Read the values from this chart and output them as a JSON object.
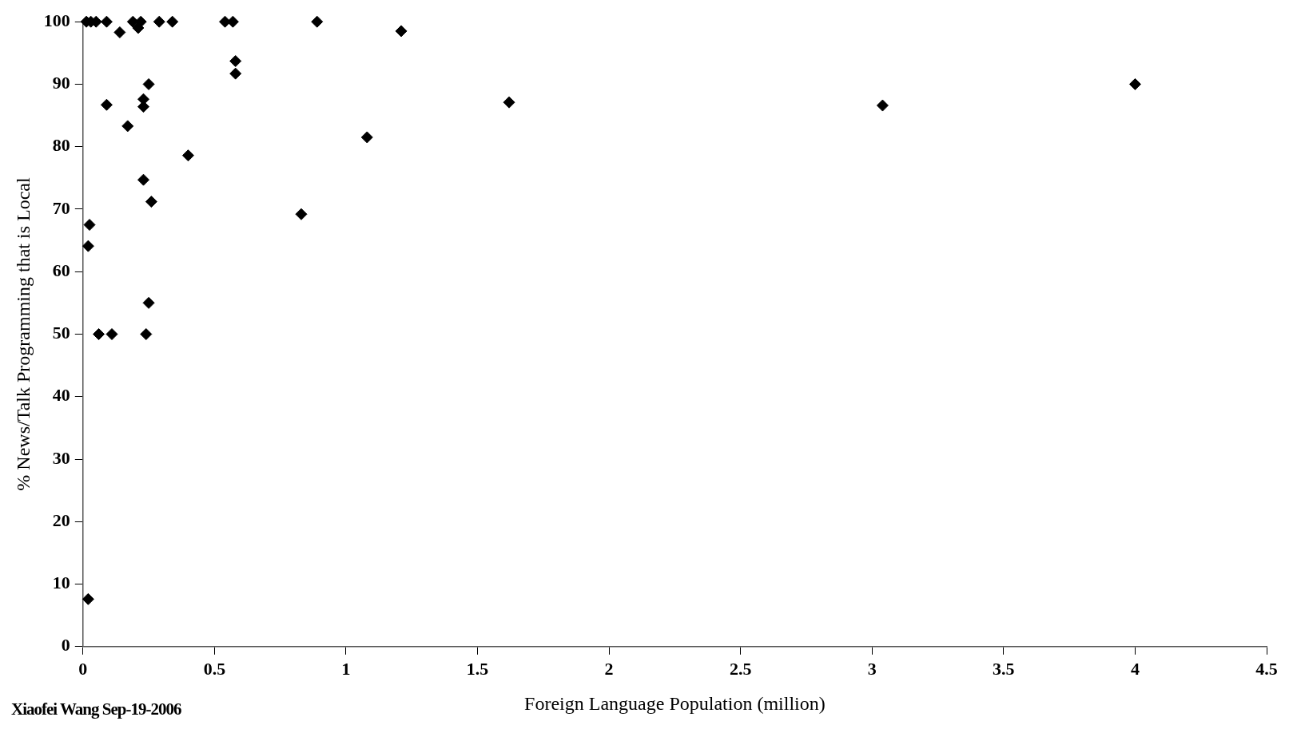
{
  "chart_data": {
    "type": "scatter",
    "xlabel": "Foreign Language Population (million)",
    "ylabel": "% News/Talk Programming that is Local",
    "x": [
      0.013,
      0.03,
      0.05,
      0.09,
      0.19,
      0.22,
      0.29,
      0.34,
      0.54,
      0.57,
      0.89,
      1.21,
      0.14,
      0.21,
      0.58,
      0.58,
      0.25,
      0.23,
      0.23,
      0.09,
      0.17,
      0.4,
      0.23,
      0.26,
      0.025,
      0.02,
      0.25,
      0.06,
      0.11,
      0.24,
      0.02,
      0.83,
      1.08,
      1.62,
      3.04,
      4.0
    ],
    "values": [
      100,
      100,
      100,
      100,
      100,
      100,
      100,
      100,
      100,
      100,
      100,
      98.5,
      98.3,
      99,
      93.7,
      91.7,
      90,
      87.6,
      86.4,
      86.7,
      83.3,
      78.6,
      74.7,
      71.2,
      67.5,
      64.1,
      55,
      50,
      50,
      50,
      7.6,
      69.2,
      81.5,
      87.1,
      86.6,
      90
    ],
    "color": "#000000",
    "marker": "diamond",
    "grid": false,
    "legend": false,
    "xlim": [
      0,
      4.5
    ],
    "xticks": [
      0,
      0.5,
      1,
      1.5,
      2,
      2.5,
      3,
      3.5,
      4,
      4.5
    ],
    "ylim": [
      0,
      100
    ],
    "yticks": [
      0,
      10,
      20,
      30,
      40,
      50,
      60,
      70,
      80,
      90,
      100
    ],
    "annotations": [
      "Xiaofei Wang Sep-19-2006"
    ]
  }
}
